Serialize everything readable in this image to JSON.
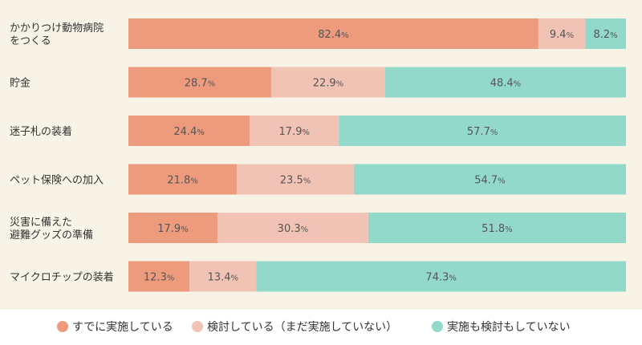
{
  "chart_data": {
    "type": "bar",
    "orientation": "horizontal",
    "stacked": true,
    "percent_suffix": "%",
    "categories": [
      [
        "かかりつけ動物病院",
        "をつくる"
      ],
      [
        "貯金"
      ],
      [
        "迷子札の装着"
      ],
      [
        "ペット保険への加入"
      ],
      [
        "災害に備えた",
        "避難グッズの準備"
      ],
      [
        "マイクロチップの装着"
      ]
    ],
    "series": [
      {
        "name": "すでに実施している",
        "color": "#ee9b7d",
        "values": [
          82.4,
          28.7,
          24.4,
          21.8,
          17.9,
          12.3
        ]
      },
      {
        "name": "検討している（まだ実施していない）",
        "color": "#f1c3b4",
        "values": [
          9.4,
          22.9,
          17.9,
          23.5,
          30.3,
          13.4
        ]
      },
      {
        "name": "実施も検討もしていない",
        "color": "#93d9ca",
        "values": [
          8.2,
          48.4,
          57.7,
          54.7,
          51.8,
          74.3
        ]
      }
    ],
    "xlim": [
      0,
      100
    ],
    "grid": false,
    "legend_position": "bottom"
  }
}
